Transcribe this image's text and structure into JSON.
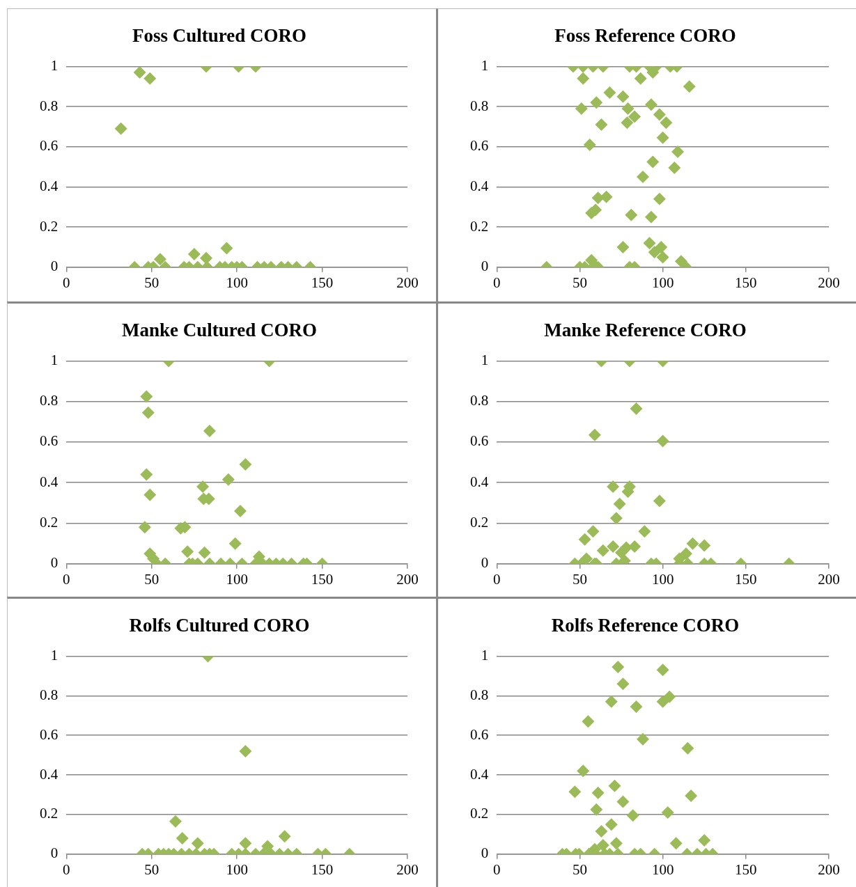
{
  "chart_data": [
    {
      "type": "scatter",
      "title": "Foss Cultured CORO",
      "color": "#9bbb59",
      "marker": "diamond",
      "grid": "y",
      "xlim": [
        0,
        200
      ],
      "xticks": [
        0,
        50,
        100,
        150,
        200
      ],
      "ylim": [
        0,
        1
      ],
      "yticks": [
        0,
        0.2,
        0.4,
        0.6,
        0.8,
        1
      ],
      "x": [
        32,
        43,
        49,
        82,
        101,
        111,
        40,
        48,
        51,
        55,
        58,
        69,
        75,
        72,
        77,
        82,
        82.5,
        90,
        94,
        93,
        97,
        100,
        103,
        112,
        116,
        120,
        126,
        130,
        135,
        143
      ],
      "values": [
        0.69,
        0.97,
        0.94,
        1,
        1,
        1,
        0,
        0,
        0,
        0.04,
        0,
        0,
        0.065,
        0,
        0,
        0.045,
        0,
        0,
        0.095,
        0,
        0,
        0,
        0,
        0,
        0,
        0,
        0,
        0,
        0,
        0
      ]
    },
    {
      "type": "scatter",
      "title": "Foss Reference CORO",
      "color": "#9bbb59",
      "marker": "diamond",
      "grid": "y",
      "xlim": [
        0,
        200
      ],
      "xticks": [
        0,
        50,
        100,
        150,
        200
      ],
      "ylim": [
        0,
        1
      ],
      "yticks": [
        0,
        0.2,
        0.4,
        0.6,
        0.8,
        1
      ],
      "x": [
        46,
        52,
        58,
        64,
        80,
        84,
        92,
        96,
        104.5,
        108.5,
        52,
        86.6,
        94,
        116,
        68,
        76,
        60,
        51,
        93,
        79,
        83,
        78.5,
        98,
        102,
        63,
        100,
        56,
        109,
        94,
        107,
        88,
        66,
        61,
        98,
        57,
        59.5,
        81,
        93,
        76,
        92,
        99,
        95,
        100,
        111,
        114,
        30,
        50,
        53,
        57,
        58,
        60,
        61,
        80,
        83
      ],
      "values": [
        1,
        1,
        1,
        1,
        1,
        1,
        1,
        1,
        1,
        1,
        0.94,
        0.94,
        0.97,
        0.9,
        0.87,
        0.85,
        0.82,
        0.79,
        0.81,
        0.79,
        0.75,
        0.72,
        0.76,
        0.72,
        0.71,
        0.645,
        0.61,
        0.575,
        0.525,
        0.495,
        0.45,
        0.35,
        0.345,
        0.34,
        0.27,
        0.285,
        0.26,
        0.25,
        0.1,
        0.12,
        0.1,
        0.075,
        0.05,
        0.03,
        0,
        0,
        0,
        0,
        0.035,
        0,
        0,
        0,
        0,
        0
      ]
    },
    {
      "type": "scatter",
      "title": "Manke Cultured CORO",
      "color": "#9bbb59",
      "marker": "diamond",
      "grid": "y",
      "xlim": [
        0,
        200
      ],
      "xticks": [
        0,
        50,
        100,
        150,
        200
      ],
      "ylim": [
        0,
        1
      ],
      "yticks": [
        0,
        0.2,
        0.4,
        0.6,
        0.8,
        1
      ],
      "x": [
        60,
        119,
        47,
        48,
        84,
        105,
        47,
        95,
        80,
        49,
        80.5,
        83.5,
        102,
        46,
        67,
        69.5,
        99,
        49,
        71,
        81,
        51,
        53,
        58,
        72,
        74,
        77,
        84,
        90.6,
        96,
        103,
        111,
        113,
        115,
        119,
        123,
        127,
        132,
        139,
        141,
        150
      ],
      "values": [
        1,
        1,
        0.825,
        0.745,
        0.655,
        0.49,
        0.44,
        0.415,
        0.38,
        0.34,
        0.32,
        0.32,
        0.26,
        0.18,
        0.175,
        0.18,
        0.1,
        0.05,
        0.06,
        0.055,
        0.025,
        0,
        0,
        0,
        0,
        0,
        0,
        0,
        0,
        0,
        0,
        0.035,
        0,
        0,
        0,
        0,
        0,
        0,
        0,
        0
      ]
    },
    {
      "type": "scatter",
      "title": "Manke Reference CORO",
      "color": "#9bbb59",
      "marker": "diamond",
      "grid": "y",
      "xlim": [
        0,
        200
      ],
      "xticks": [
        0,
        50,
        100,
        150,
        200
      ],
      "ylim": [
        0,
        1
      ],
      "yticks": [
        0,
        0.2,
        0.4,
        0.6,
        0.8,
        1
      ],
      "x": [
        63,
        80,
        100,
        84,
        59,
        100,
        80,
        70,
        79,
        74,
        98,
        72,
        89,
        58,
        53,
        64,
        70,
        83,
        78,
        118,
        125,
        114,
        110,
        75,
        54,
        47,
        51,
        59,
        60,
        72,
        77,
        93,
        96,
        110,
        115,
        125,
        129,
        147,
        176
      ],
      "values": [
        1,
        1,
        1,
        0.765,
        0.635,
        0.605,
        0.38,
        0.38,
        0.355,
        0.295,
        0.31,
        0.225,
        0.16,
        0.16,
        0.12,
        0.065,
        0.085,
        0.085,
        0.08,
        0.1,
        0.09,
        0.05,
        0.025,
        0.055,
        0.025,
        0,
        0,
        0,
        0,
        0,
        0.015,
        0,
        0,
        0,
        0,
        0,
        0,
        0,
        0
      ]
    },
    {
      "type": "scatter",
      "title": "Rolfs Cultured CORO",
      "color": "#9bbb59",
      "marker": "diamond",
      "grid": "y",
      "xlim": [
        0,
        200
      ],
      "xticks": [
        0,
        50,
        100,
        150,
        200
      ],
      "ylim": [
        0,
        1
      ],
      "yticks": [
        0,
        0.2,
        0.4,
        0.6,
        0.8,
        1
      ],
      "x": [
        83,
        105,
        64,
        68,
        77,
        105,
        128,
        118,
        44.5,
        48,
        54,
        57,
        60,
        63,
        67.5,
        72,
        76,
        81,
        84,
        86.5,
        97,
        101,
        105,
        111,
        115.5,
        120,
        125,
        130,
        135,
        147.5,
        152,
        166
      ],
      "values": [
        1,
        0.52,
        0.165,
        0.08,
        0.055,
        0.055,
        0.09,
        0.04,
        0,
        0,
        0,
        0,
        0,
        0,
        0,
        0,
        0,
        0,
        0,
        0,
        0,
        0,
        0,
        0,
        0,
        0,
        0,
        0,
        0,
        0,
        0,
        0
      ]
    },
    {
      "type": "scatter",
      "title": "Rolfs Reference CORO",
      "color": "#9bbb59",
      "marker": "diamond",
      "grid": "y",
      "xlim": [
        0,
        200
      ],
      "xticks": [
        0,
        50,
        100,
        150,
        200
      ],
      "ylim": [
        0,
        1
      ],
      "yticks": [
        0,
        0.2,
        0.4,
        0.6,
        0.8,
        1
      ],
      "x": [
        73,
        100,
        76,
        69,
        84,
        100,
        104,
        55,
        88,
        115,
        52,
        47,
        61,
        71,
        117,
        76,
        60,
        103,
        82,
        69,
        63,
        108,
        125,
        72,
        64,
        59,
        39.5,
        42,
        47.5,
        49.6,
        55.5,
        59.6,
        65,
        68,
        73,
        83,
        86.6,
        95,
        114.6,
        120.7,
        126,
        130
      ],
      "values": [
        0.945,
        0.93,
        0.86,
        0.77,
        0.745,
        0.77,
        0.795,
        0.67,
        0.58,
        0.535,
        0.42,
        0.315,
        0.31,
        0.345,
        0.295,
        0.265,
        0.225,
        0.21,
        0.195,
        0.15,
        0.115,
        0.055,
        0.07,
        0.055,
        0.045,
        0.025,
        0,
        0,
        0,
        0,
        0,
        0,
        0,
        0,
        0,
        0,
        0,
        0,
        0,
        0,
        0,
        0
      ]
    }
  ]
}
